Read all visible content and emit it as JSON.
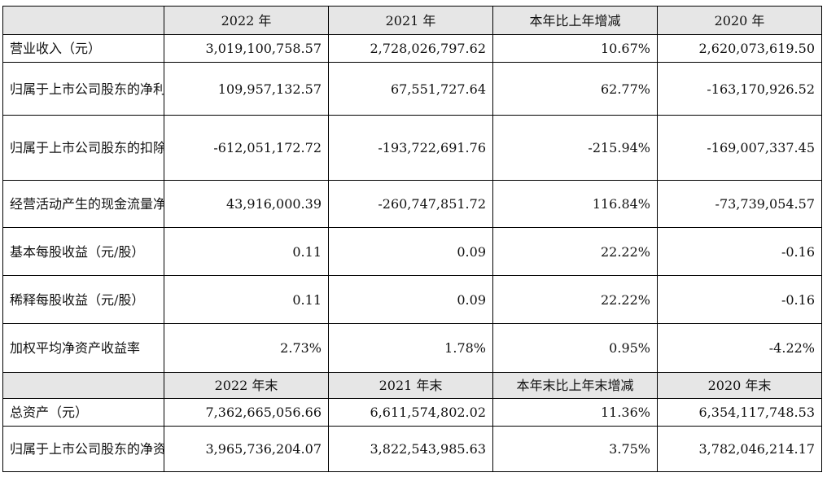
{
  "header1": [
    "",
    "2022 年",
    "2021 年",
    "本年比上年增减",
    "2020 年"
  ],
  "header2": [
    "",
    "2022 年末",
    "2021 年末",
    "本年末比上年末增减",
    "2020 年末"
  ],
  "rows1": [
    {
      "label": "营业收入（元）",
      "values": [
        "3,019,100,758.57",
        "2,728,026,797.62",
        "10.67%",
        "2,620,073,619.50"
      ]
    },
    {
      "label": "归属于上市公司股东的净利润（元）",
      "values": [
        "109,957,132.57",
        "67,551,727.64",
        "62.77%",
        "-163,170,926.52"
      ]
    },
    {
      "label": "归属于上市公司股东的扣除非经常性损益的净利润（元）",
      "values": [
        "-612,051,172.72",
        "-193,722,691.76",
        "-215.94%",
        "-169,007,337.45"
      ]
    },
    {
      "label": "经营活动产生的现金流量净额（元）",
      "values": [
        "43,916,000.39",
        "-260,747,851.72",
        "116.84%",
        "-73,739,054.57"
      ]
    },
    {
      "label": "基本每股收益（元/股）",
      "values": [
        "0.11",
        "0.09",
        "22.22%",
        "-0.16"
      ]
    },
    {
      "label": "稀释每股收益（元/股）",
      "values": [
        "0.11",
        "0.09",
        "22.22%",
        "-0.16"
      ]
    },
    {
      "label": "加权平均净资产收益率",
      "values": [
        "2.73%",
        "1.78%",
        "0.95%",
        "-4.22%"
      ]
    }
  ],
  "rows2": [
    {
      "label": "总资产（元）",
      "values": [
        "7,362,665,056.66",
        "6,611,574,802.02",
        "11.36%",
        "6,354,117,748.53"
      ]
    },
    {
      "label": "归属于上市公司股东的净资产（元）",
      "values": [
        "3,965,736,204.07",
        "3,822,543,985.63",
        "3.75%",
        "3,782,046,214.17"
      ]
    }
  ]
}
